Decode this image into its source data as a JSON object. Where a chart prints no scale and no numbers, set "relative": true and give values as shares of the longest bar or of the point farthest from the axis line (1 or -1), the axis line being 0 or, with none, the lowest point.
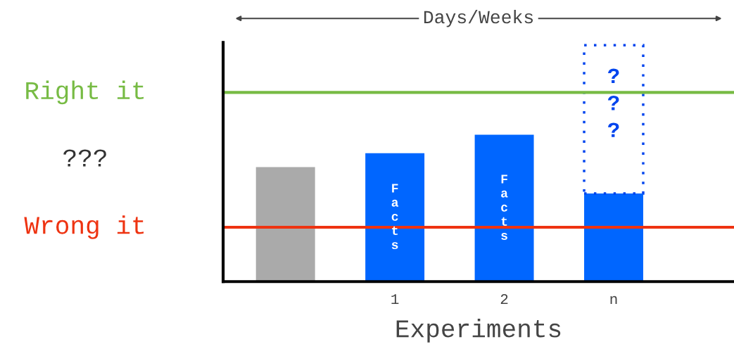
{
  "chart_data": {
    "type": "bar",
    "relative": true,
    "xlabel": "Experiments",
    "categories": [
      null,
      "1",
      "2",
      "n"
    ],
    "stacked": true,
    "series": [
      {
        "colors": [
          "#aaaaaa",
          "#0066ff",
          "#0066ff",
          "#0066ff"
        ],
        "values": [
          0.484,
          0.543,
          0.621,
          0.373
        ]
      },
      {
        "color": "#0044ee",
        "line_style": "dotted",
        "values": [
          null,
          null,
          null,
          0.627
        ]
      }
    ],
    "ref_lines": [
      {
        "axis": "y",
        "value": 0.8,
        "label": "Right it",
        "color": "#77bb44"
      },
      {
        "axis": "y",
        "value": 0.23,
        "label": "Wrong it",
        "color": "#ee3311"
      }
    ],
    "annotations": [
      "Days/Weeks",
      "???",
      "Facts",
      "Facts",
      "???"
    ]
  }
}
